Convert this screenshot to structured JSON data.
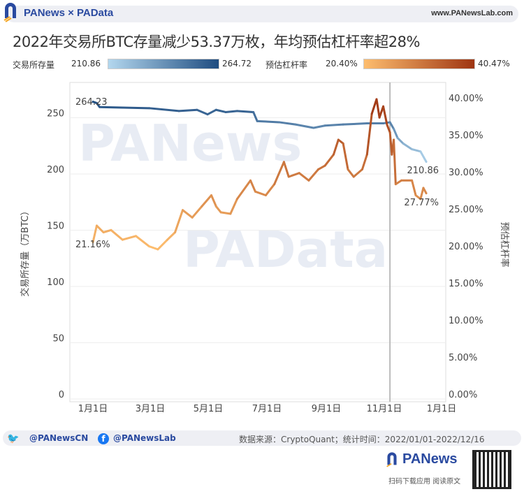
{
  "header": {
    "brand": "PANews × PAData",
    "site": "www.PANewsLab.com"
  },
  "title": "2022年交易所BTC存量减少53.37万枚，年均预估杠杆率超28%",
  "legend": {
    "reserve": {
      "label": "交易所存量",
      "min": "210.86",
      "max": "264.72",
      "color_min": "#b3d7ee",
      "color_max": "#1e4c80"
    },
    "leverage": {
      "label": "预估杠杆率",
      "min": "20.40%",
      "max": "40.47%",
      "color_min": "#fdbd6e",
      "color_max": "#9e3512"
    }
  },
  "watermarks": [
    "PANews",
    "PAData"
  ],
  "chart_data": {
    "type": "line",
    "xlabel": "",
    "ylabel": "交易所存量（万BTC）",
    "y2label": "预估杠杆率",
    "ylim": [
      0,
      270
    ],
    "y2lim": [
      0,
      0.42
    ],
    "xticks": [
      "1月1日",
      "3月1日",
      "5月1日",
      "7月1日",
      "9月1日",
      "11月1日",
      "1月1日"
    ],
    "yticks": [
      "0",
      "50",
      "100",
      "150",
      "200",
      "250"
    ],
    "y2ticks": [
      "0.00%",
      "5.00%",
      "10.00%",
      "15.00%",
      "20.00%",
      "25.00%",
      "30.00%",
      "35.00%",
      "40.00%"
    ],
    "reference_line_date": "2022-11-08",
    "grid": true,
    "series": [
      {
        "name": "交易所存量",
        "axis": "left",
        "points": [
          [
            "2022-01-01",
            264.23
          ],
          [
            "2022-01-05",
            263
          ],
          [
            "2022-01-08",
            259.5
          ],
          [
            "2022-02-01",
            259
          ],
          [
            "2022-03-01",
            258.5
          ],
          [
            "2022-04-01",
            256
          ],
          [
            "2022-04-20",
            257
          ],
          [
            "2022-05-01",
            253
          ],
          [
            "2022-05-10",
            257
          ],
          [
            "2022-05-20",
            255
          ],
          [
            "2022-06-01",
            256
          ],
          [
            "2022-06-18",
            255
          ],
          [
            "2022-06-22",
            247
          ],
          [
            "2022-07-15",
            246
          ],
          [
            "2022-08-01",
            244
          ],
          [
            "2022-08-20",
            241
          ],
          [
            "2022-09-01",
            243
          ],
          [
            "2022-09-20",
            244
          ],
          [
            "2022-10-15",
            245
          ],
          [
            "2022-11-01",
            245
          ],
          [
            "2022-11-08",
            246
          ],
          [
            "2022-11-12",
            240
          ],
          [
            "2022-11-16",
            232
          ],
          [
            "2022-11-22",
            227
          ],
          [
            "2022-12-01",
            222
          ],
          [
            "2022-12-10",
            220
          ],
          [
            "2022-12-16",
            210.86
          ]
        ]
      },
      {
        "name": "预估杠杆率",
        "axis": "right",
        "points": [
          [
            "2022-01-01",
            0.2116
          ],
          [
            "2022-01-05",
            0.234
          ],
          [
            "2022-01-12",
            0.225
          ],
          [
            "2022-01-20",
            0.228
          ],
          [
            "2022-02-01",
            0.215
          ],
          [
            "2022-02-15",
            0.22
          ],
          [
            "2022-03-01",
            0.206
          ],
          [
            "2022-03-10",
            0.202
          ],
          [
            "2022-03-20",
            0.215
          ],
          [
            "2022-03-28",
            0.225
          ],
          [
            "2022-04-05",
            0.255
          ],
          [
            "2022-04-15",
            0.245
          ],
          [
            "2022-04-25",
            0.26
          ],
          [
            "2022-05-05",
            0.275
          ],
          [
            "2022-05-10",
            0.26
          ],
          [
            "2022-05-15",
            0.252
          ],
          [
            "2022-05-25",
            0.25
          ],
          [
            "2022-06-01",
            0.27
          ],
          [
            "2022-06-15",
            0.295
          ],
          [
            "2022-06-20",
            0.28
          ],
          [
            "2022-07-01",
            0.275
          ],
          [
            "2022-07-10",
            0.29
          ],
          [
            "2022-07-20",
            0.32
          ],
          [
            "2022-07-25",
            0.3
          ],
          [
            "2022-08-05",
            0.305
          ],
          [
            "2022-08-15",
            0.295
          ],
          [
            "2022-08-25",
            0.31
          ],
          [
            "2022-09-01",
            0.315
          ],
          [
            "2022-09-10",
            0.33
          ],
          [
            "2022-09-15",
            0.35
          ],
          [
            "2022-09-20",
            0.345
          ],
          [
            "2022-09-25",
            0.31
          ],
          [
            "2022-10-01",
            0.3
          ],
          [
            "2022-10-10",
            0.31
          ],
          [
            "2022-10-15",
            0.33
          ],
          [
            "2022-10-20",
            0.385
          ],
          [
            "2022-10-25",
            0.4047
          ],
          [
            "2022-10-28",
            0.38
          ],
          [
            "2022-11-01",
            0.395
          ],
          [
            "2022-11-05",
            0.37
          ],
          [
            "2022-11-08",
            0.36
          ],
          [
            "2022-11-10",
            0.33
          ],
          [
            "2022-11-12",
            0.35
          ],
          [
            "2022-11-14",
            0.29
          ],
          [
            "2022-11-20",
            0.295
          ],
          [
            "2022-12-01",
            0.295
          ],
          [
            "2022-12-05",
            0.275
          ],
          [
            "2022-12-10",
            0.27
          ],
          [
            "2022-12-13",
            0.285
          ],
          [
            "2022-12-16",
            0.2777
          ]
        ]
      }
    ],
    "annotations": [
      "264.23",
      "210.86",
      "21.16%",
      "27.77%"
    ]
  },
  "footer": {
    "twitter": "@PANewsCN",
    "facebook": "@PANewsLab",
    "source": "数据来源：CryptoQuant；统计时间：2022/01/01-2022/12/16",
    "app_brand": "PANews",
    "app_caption": "扫码下载应用 阅读原文"
  }
}
